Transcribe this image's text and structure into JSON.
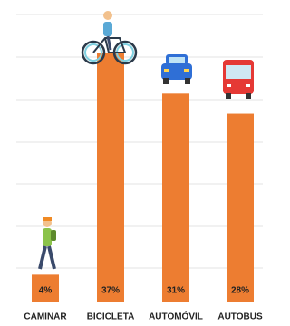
{
  "chart_data": {
    "type": "bar",
    "categories": [
      "CAMINAR",
      "BICICLETA",
      "AUTOMÓVIL",
      "AUTOBUS"
    ],
    "values": [
      4,
      37,
      31,
      28
    ],
    "value_labels": [
      "4%",
      "37%",
      "31%",
      "28%"
    ],
    "color": "#ed7d31",
    "ylim": [
      0,
      44
    ]
  }
}
